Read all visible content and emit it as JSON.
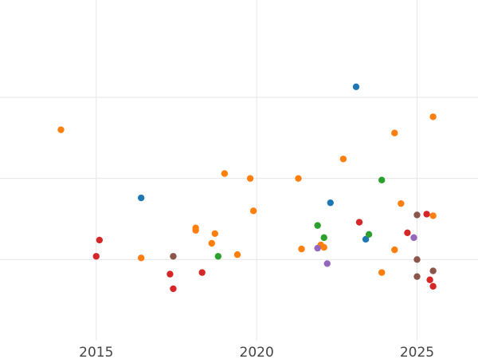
{
  "chart_data": {
    "type": "scatter",
    "title": "",
    "xlabel": "",
    "ylabel": "",
    "grid": true,
    "xlim": [
      2012.0,
      2026.9
    ],
    "ylim": [
      0.0,
      4.2
    ],
    "xticks": [
      2015,
      2020,
      2025
    ],
    "yticks": [
      1,
      2,
      3
    ],
    "xtick_labels": [
      "2015",
      "2020",
      "2025"
    ],
    "series": [
      {
        "color": "#1f77b4",
        "points": [
          {
            "x": 2016.4,
            "y": 1.76
          },
          {
            "x": 2022.3,
            "y": 1.7
          },
          {
            "x": 2023.1,
            "y": 3.13
          },
          {
            "x": 2023.4,
            "y": 1.25
          }
        ]
      },
      {
        "color": "#ff7f0e",
        "points": [
          {
            "x": 2013.9,
            "y": 2.6
          },
          {
            "x": 2016.4,
            "y": 1.02
          },
          {
            "x": 2018.1,
            "y": 1.39
          },
          {
            "x": 2018.1,
            "y": 1.36
          },
          {
            "x": 2018.6,
            "y": 1.2
          },
          {
            "x": 2018.7,
            "y": 1.32
          },
          {
            "x": 2019.0,
            "y": 2.06
          },
          {
            "x": 2019.4,
            "y": 1.06
          },
          {
            "x": 2019.8,
            "y": 2.0
          },
          {
            "x": 2019.9,
            "y": 1.6
          },
          {
            "x": 2021.3,
            "y": 2.0
          },
          {
            "x": 2021.4,
            "y": 1.13
          },
          {
            "x": 2022.0,
            "y": 1.18
          },
          {
            "x": 2022.1,
            "y": 1.15
          },
          {
            "x": 2022.7,
            "y": 2.24
          },
          {
            "x": 2023.9,
            "y": 0.84
          },
          {
            "x": 2024.3,
            "y": 2.56
          },
          {
            "x": 2024.3,
            "y": 1.12
          },
          {
            "x": 2024.5,
            "y": 1.69
          },
          {
            "x": 2025.5,
            "y": 2.76
          },
          {
            "x": 2025.5,
            "y": 1.54
          }
        ]
      },
      {
        "color": "#2ca02c",
        "points": [
          {
            "x": 2018.8,
            "y": 1.04
          },
          {
            "x": 2021.9,
            "y": 1.42
          },
          {
            "x": 2022.1,
            "y": 1.27
          },
          {
            "x": 2023.5,
            "y": 1.31
          },
          {
            "x": 2023.9,
            "y": 1.98
          }
        ]
      },
      {
        "color": "#d62728",
        "points": [
          {
            "x": 2015.0,
            "y": 1.04
          },
          {
            "x": 2015.1,
            "y": 1.24
          },
          {
            "x": 2017.3,
            "y": 0.82
          },
          {
            "x": 2017.4,
            "y": 0.64
          },
          {
            "x": 2018.3,
            "y": 0.84
          },
          {
            "x": 2023.2,
            "y": 1.46
          },
          {
            "x": 2024.7,
            "y": 1.33
          },
          {
            "x": 2025.3,
            "y": 1.56
          },
          {
            "x": 2025.4,
            "y": 0.75
          },
          {
            "x": 2025.5,
            "y": 0.67
          }
        ]
      },
      {
        "color": "#9467bd",
        "points": [
          {
            "x": 2021.9,
            "y": 1.14
          },
          {
            "x": 2022.2,
            "y": 0.95
          },
          {
            "x": 2024.9,
            "y": 1.27
          }
        ]
      },
      {
        "color": "#8c564b",
        "points": [
          {
            "x": 2017.4,
            "y": 1.04
          },
          {
            "x": 2025.0,
            "y": 1.55
          },
          {
            "x": 2025.0,
            "y": 1.0
          },
          {
            "x": 2025.0,
            "y": 0.79
          },
          {
            "x": 2025.5,
            "y": 0.86
          }
        ]
      }
    ]
  }
}
